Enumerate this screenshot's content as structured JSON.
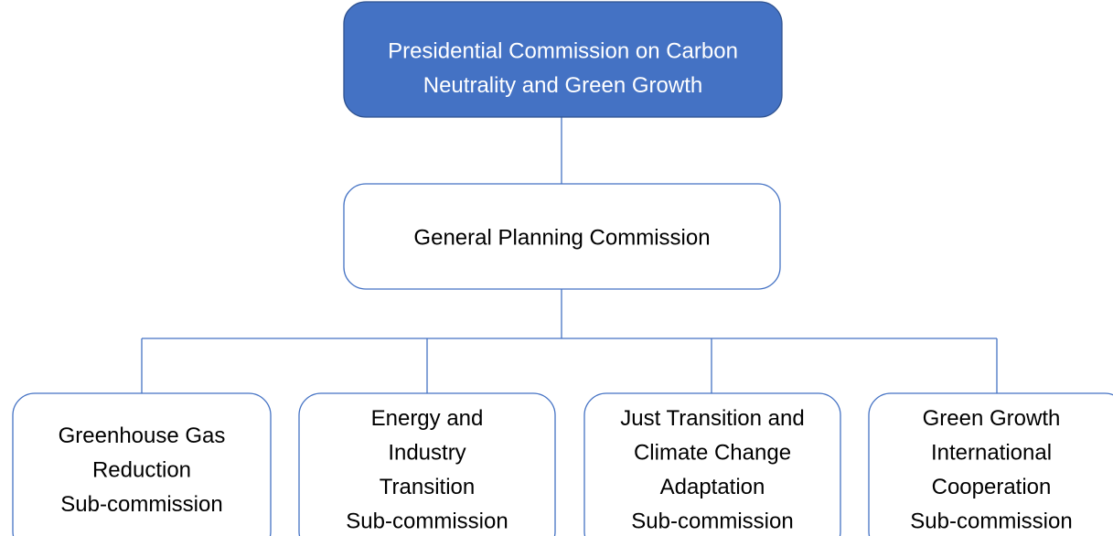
{
  "nodes": [
    {
      "lines": [
        "Presidential Commission on Carbon",
        "Neutrality and Green Growth"
      ]
    },
    {
      "lines": [
        "General Planning Commission"
      ]
    },
    {
      "lines": [
        "Greenhouse Gas",
        "Reduction",
        "Sub-commission"
      ]
    },
    {
      "lines": [
        "Energy and",
        "Industry",
        "Transition",
        "Sub-commission"
      ]
    },
    {
      "lines": [
        "Just Transition and",
        "Climate Change",
        "Adaptation",
        "Sub-commission"
      ]
    },
    {
      "lines": [
        "Green Growth",
        "International",
        "Cooperation",
        "Sub-commission"
      ]
    }
  ]
}
